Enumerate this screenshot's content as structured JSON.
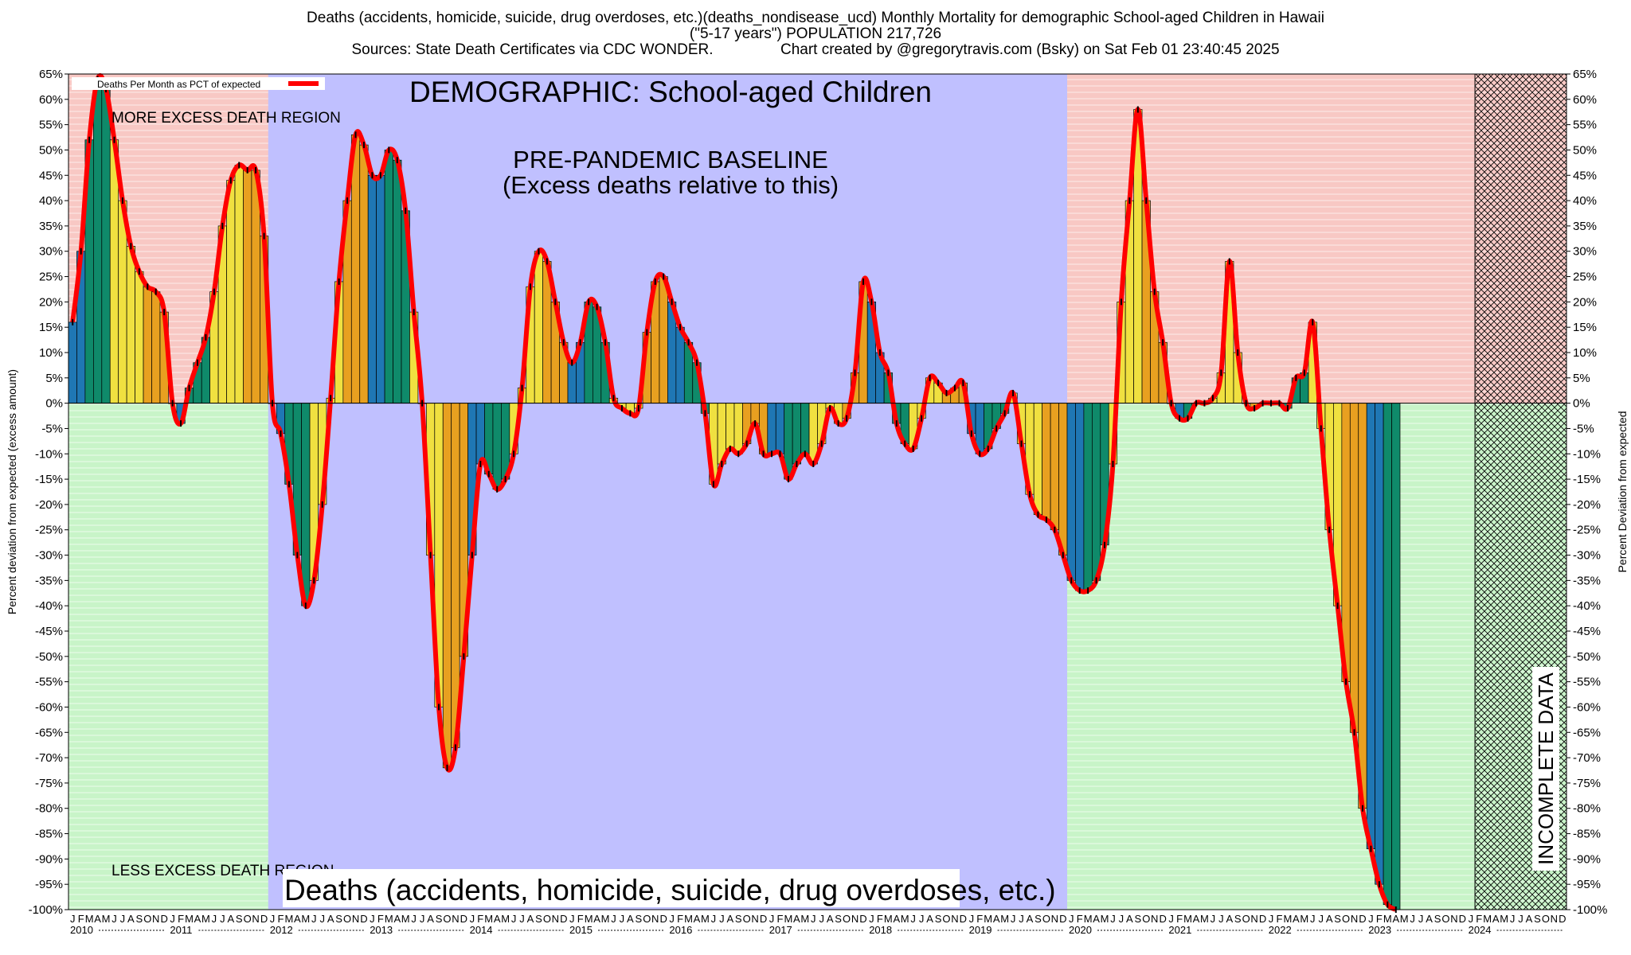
{
  "header": {
    "title_line1": "Deaths (accidents, homicide, suicide, drug overdoses, etc.)(deaths_nondisease_ucd) Monthly Mortality for demographic School-aged Children in Hawaii",
    "title_line2": "(\"5-17 years\") POPULATION 217,726",
    "title_line3": "Sources: State Death Certificates via CDC WONDER.                Chart created by @gregorytravis.com (Bsky) on Sat Feb 01 23:40:45 2025"
  },
  "chart_data": {
    "type": "bar",
    "legend": {
      "label": "Deaths Per Month as PCT of expected",
      "placement": "top-left",
      "color": "#ff0000"
    },
    "ylabel_left": "Percent deviation from expected (excess amount)",
    "ylabel_right": "Percent Deviation from expected",
    "ylim": [
      -100,
      65
    ],
    "yticks": [
      65,
      60,
      55,
      50,
      45,
      40,
      35,
      30,
      25,
      20,
      15,
      10,
      5,
      0,
      -5,
      -10,
      -15,
      -20,
      -25,
      -30,
      -35,
      -40,
      -45,
      -50,
      -55,
      -60,
      -65,
      -70,
      -75,
      -80,
      -85,
      -90,
      -95,
      -100
    ],
    "month_letters": [
      "J",
      "F",
      "M",
      "A",
      "M",
      "J",
      "J",
      "A",
      "S",
      "O",
      "N",
      "D"
    ],
    "years": [
      "2010",
      "2011",
      "2012",
      "2013",
      "2014",
      "2015",
      "2016",
      "2017",
      "2018",
      "2019",
      "2020",
      "2021",
      "2022",
      "2023",
      "2024"
    ],
    "x_start": "2010-01",
    "season_colors": [
      "#1f77b4",
      "#1f77b4",
      "#0f8a6a",
      "#0f8a6a",
      "#0f8a6a",
      "#f0e040",
      "#f0e040",
      "#f0e040",
      "#f0e040",
      "#e8a020",
      "#e8a020",
      "#e8a020"
    ],
    "regions": {
      "more_excess_label": "MORE EXCESS DEATH REGION",
      "less_excess_label": "LESS EXCESS DEATH REGION",
      "baseline_label_1": "PRE-PANDEMIC BASELINE",
      "baseline_label_2": "(Excess deaths relative to this)",
      "baseline_period": [
        "2012-01",
        "2019-12"
      ],
      "incomplete_label": "INCOMPLETE DATA",
      "incomplete_from": "2024-02",
      "colors": {
        "positive": "#f8c8c4",
        "negative": "#c8f4c8",
        "baseline": "#c0c0ff"
      }
    },
    "demographic_label": "DEMOGRAPHIC: School-aged Children",
    "footer_label": "Deaths (accidents, homicide, suicide, drug overdoses, etc.)",
    "values": [
      16,
      30,
      52,
      64,
      62,
      52,
      40,
      31,
      26,
      23,
      22,
      18,
      0,
      -4,
      3,
      8,
      13,
      22,
      35,
      44,
      47,
      46,
      46,
      33,
      0,
      -6,
      -16,
      -30,
      -40,
      -35,
      -20,
      1,
      24,
      40,
      53,
      51,
      45,
      45,
      50,
      48,
      38,
      18,
      0,
      -30,
      -60,
      -72,
      -68,
      -50,
      -30,
      -12,
      -14,
      -17,
      -15,
      -10,
      3,
      23,
      30,
      28,
      20,
      12,
      8,
      12,
      20,
      19,
      12,
      1,
      -1,
      -2,
      -1,
      14,
      24,
      25,
      20,
      15,
      12,
      8,
      -2,
      -16,
      -12,
      -9,
      -10,
      -8,
      -4,
      -10,
      -10,
      -10,
      -15,
      -12,
      -10,
      -12,
      -8,
      -1,
      -4,
      -3,
      6,
      24,
      20,
      10,
      6,
      -4,
      -8,
      -9,
      -3,
      5,
      4,
      2,
      3,
      4,
      -6,
      -10,
      -9,
      -5,
      -2,
      2,
      -8,
      -18,
      -22,
      -23,
      -25,
      -30,
      -35,
      -37,
      -37,
      -35,
      -28,
      -12,
      20,
      40,
      58,
      40,
      22,
      12,
      0,
      -3,
      -3,
      0,
      0,
      1,
      6,
      28,
      10,
      0,
      -1,
      0,
      0,
      0,
      -1,
      5,
      6,
      16,
      -5,
      -25,
      -40,
      -55,
      -65,
      -80,
      -88,
      -95,
      -99,
      -100
    ]
  }
}
